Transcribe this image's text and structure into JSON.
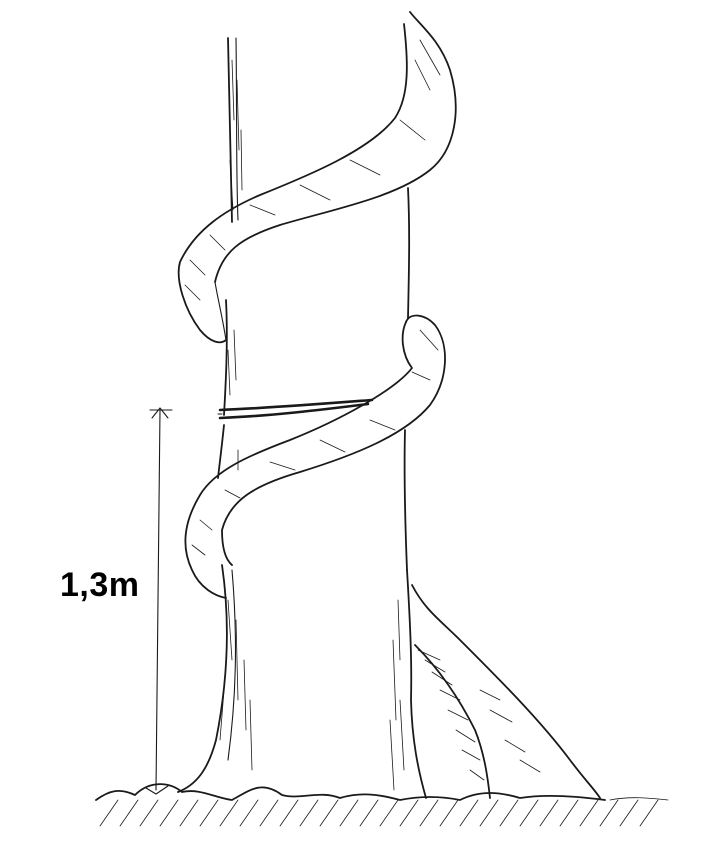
{
  "measurement": {
    "label": "1,3m"
  },
  "colors": {
    "ink": "#1a1a1a",
    "paper": "#ffffff",
    "label": "#000000"
  }
}
